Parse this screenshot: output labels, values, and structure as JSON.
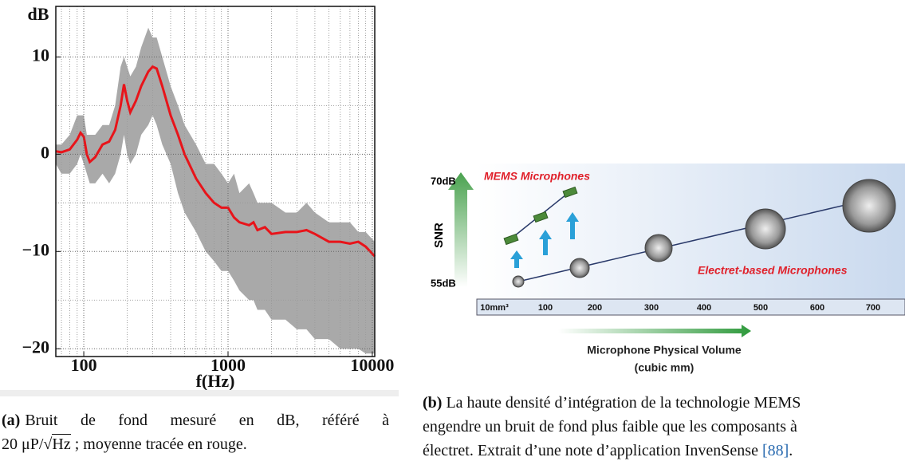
{
  "chart_data": {
    "type": "line",
    "y_axis_label": "dB",
    "x_axis_label": "f(Hz)",
    "log_x": true,
    "grid": true,
    "xlim": [
      64,
      10400
    ],
    "xticks": [
      100,
      1000,
      10000
    ],
    "ylim": [
      -20.8,
      15.2
    ],
    "yticks": [
      {
        "value": -20,
        "label": "−20"
      },
      {
        "value": -10,
        "label": "−10"
      },
      0,
      10
    ],
    "x": [
      64,
      70,
      80,
      90,
      95,
      100,
      105,
      110,
      120,
      135,
      150,
      165,
      180,
      190,
      200,
      210,
      230,
      250,
      280,
      300,
      320,
      350,
      400,
      450,
      500,
      600,
      700,
      800,
      900,
      1000,
      1100,
      1200,
      1400,
      1500,
      1600,
      1800,
      2000,
      2500,
      3000,
      3500,
      4000,
      5000,
      6000,
      7000,
      8000,
      9000,
      10400
    ],
    "series": [
      {
        "color": "#e8141a",
        "values": [
          0.3,
          0.2,
          0.5,
          1.5,
          2.2,
          1.8,
          0,
          -0.8,
          -0.3,
          1,
          1.3,
          2.5,
          5,
          7.2,
          5.5,
          4.3,
          5.5,
          7,
          8.5,
          9,
          8.8,
          7,
          4,
          2,
          0,
          -2.5,
          -4,
          -5,
          -5.5,
          -5.5,
          -6.5,
          -7,
          -7.3,
          -7,
          -7.8,
          -7.5,
          -8.2,
          -8,
          -8,
          -7.8,
          -8.2,
          -9,
          -9,
          -9.2,
          -9,
          -9.5,
          -10.5
        ]
      }
    ],
    "envelope": {
      "color": "#9a9a9a",
      "upper": [
        1,
        1,
        2,
        4,
        4,
        4,
        2,
        2,
        2,
        3,
        3,
        5,
        9,
        10,
        9,
        8,
        9,
        11,
        13,
        12,
        12,
        10,
        7,
        5,
        3,
        1,
        -1,
        -1,
        -2,
        -3,
        -2,
        -4,
        -3,
        -4,
        -5,
        -5,
        -5,
        -6,
        -6,
        -5,
        -6,
        -7,
        -7,
        -7,
        -8,
        -8,
        -9
      ],
      "lower": [
        -1,
        -2,
        -2,
        -1,
        0,
        -1,
        -2,
        -3,
        -3,
        -2,
        -3,
        -2,
        0,
        2,
        0,
        -1,
        0,
        2,
        3,
        4,
        3,
        1,
        -1,
        -4,
        -6,
        -8,
        -10,
        -11,
        -12,
        -12,
        -13,
        -14,
        -15,
        -15,
        -16,
        -16,
        -17,
        -17,
        -18,
        -18,
        -19,
        -19,
        -20,
        -20,
        -20,
        -20.5,
        -20.5
      ]
    }
  },
  "caption_a": {
    "label": "(a)",
    "line1": "Bruit de fond mesuré en dB, référé à",
    "line2_pre": "20 μP/",
    "line2_root": "Hz",
    "line2_post": "; moyenne tracée en rouge."
  },
  "figure_b": {
    "y_top": "70dB",
    "y_bottom": "55dB",
    "y_axis": "SNR",
    "mems": "MEMS Microphones",
    "electret": "Electret-based Microphones",
    "x_labels": [
      "10mm³",
      "100",
      "200",
      "300",
      "400",
      "500",
      "600",
      "700"
    ],
    "x_title": "Microphone Physical Volume",
    "x_unit": "(cubic mm)"
  },
  "caption_b": {
    "label": "(b)",
    "line1": "La haute densité d’intégration de la technologie MEMS",
    "line2": "engendre un bruit de fond plus faible que les composants à",
    "line3": "électret. Extrait d’une note d’application InvenSense",
    "ref": "[88]",
    "end": "."
  }
}
